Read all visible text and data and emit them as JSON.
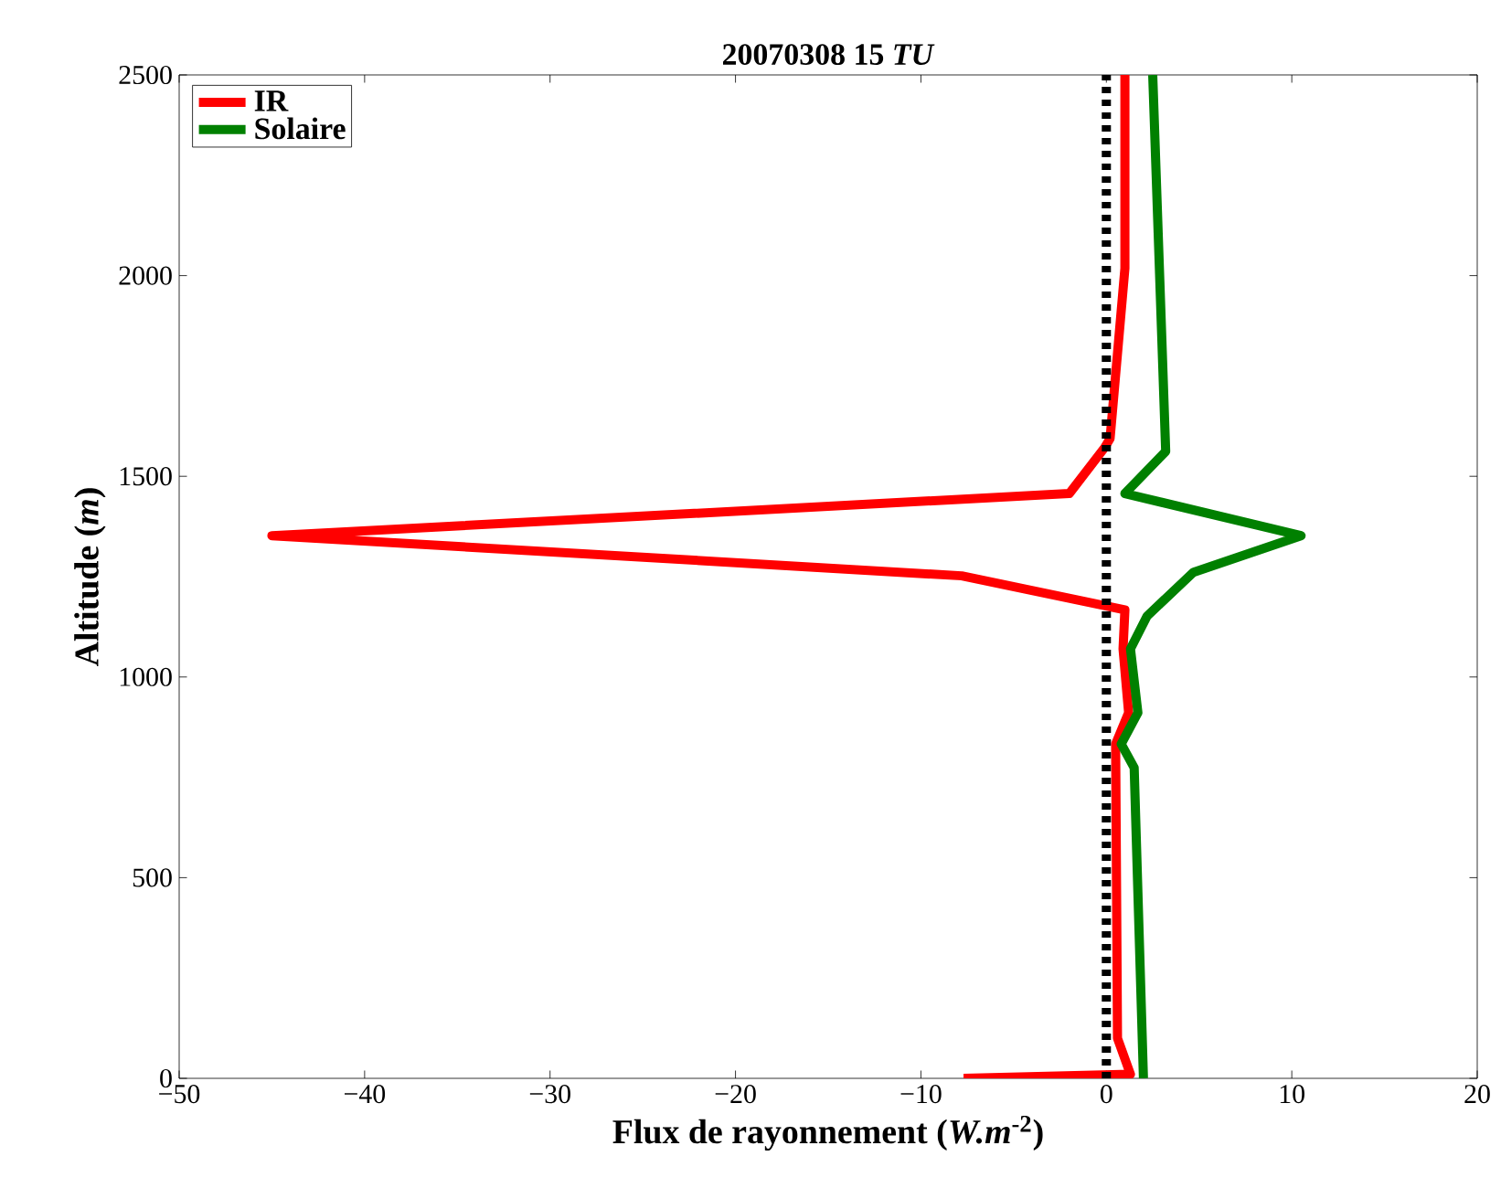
{
  "chart_data": {
    "type": "line",
    "title": "20070308 15 *TU*",
    "xlabel": "Flux de rayonnement (*W.m*$^{-2}$)",
    "ylabel": "Altitude (*m*)",
    "xlim": [
      -50,
      20
    ],
    "ylim": [
      0,
      2500
    ],
    "xticks": [
      {
        "value": -50,
        "label": "−50"
      },
      {
        "value": -40,
        "label": "−40"
      },
      {
        "value": -30,
        "label": "−30"
      },
      {
        "value": -20,
        "label": "−20"
      },
      {
        "value": -10,
        "label": "−10"
      },
      0,
      10,
      20
    ],
    "yticks": [
      0,
      500,
      1000,
      1500,
      2000,
      2500
    ],
    "grid": false,
    "legend": "top left",
    "marker": "none",
    "line_style": "solid",
    "series": [
      {
        "name": "IR",
        "color": "#ff0000",
        "x": [
          -7.7,
          1.3,
          0.6,
          0.5,
          1.2,
          0.9,
          1.0,
          -7.8,
          -45,
          -2.0,
          -0.1,
          0.2,
          1.0,
          1.0
        ],
        "values": [
          0,
          10,
          100,
          833,
          911,
          1070,
          1167,
          1252,
          1352,
          1457,
          1571,
          1594,
          2018,
          2500
        ]
      },
      {
        "name": "Solaire",
        "color": "#008000",
        "x": [
          2.0,
          1.5,
          0.8,
          1.7,
          1.3,
          2.2,
          4.7,
          10.5,
          1.0,
          3.2,
          2.5
        ],
        "values": [
          0,
          774,
          833,
          911,
          1070,
          1152,
          1261,
          1352,
          1457,
          1562,
          2500
        ]
      }
    ],
    "ref_lines": [
      {
        "axis": "x",
        "value": 0,
        "color": "#000000",
        "line_style": "dotted"
      }
    ]
  }
}
